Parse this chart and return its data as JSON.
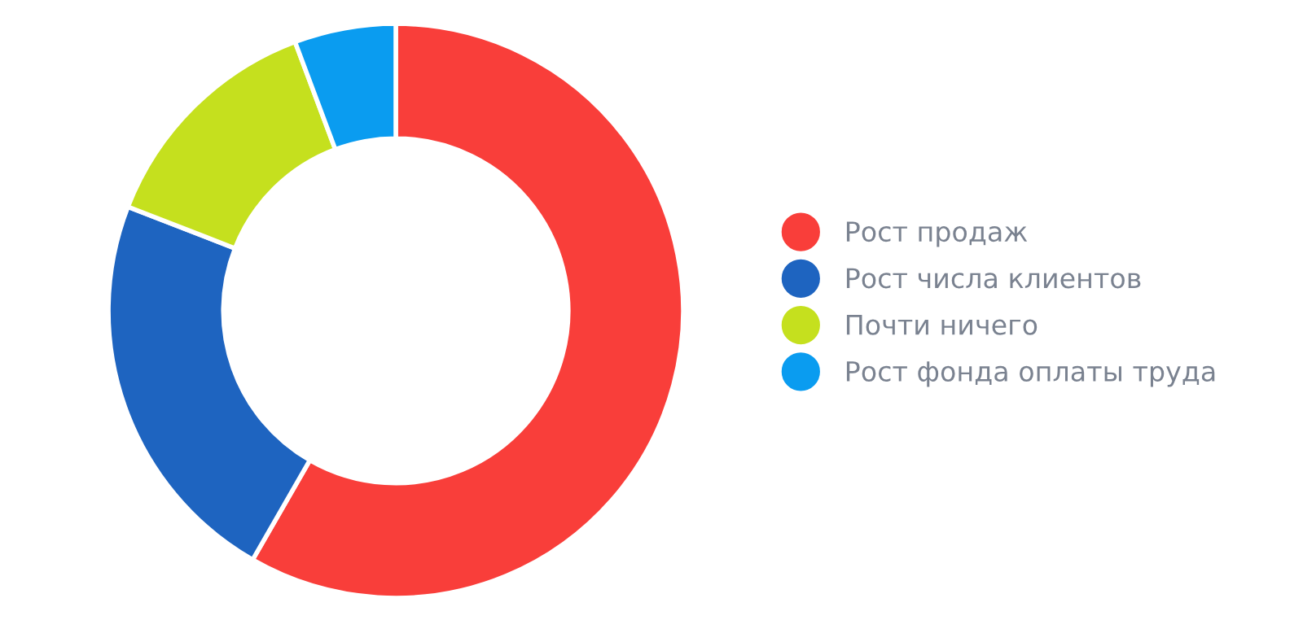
{
  "chart_data": {
    "type": "donut",
    "categories": [
      "Рост продаж",
      "Рост числа клиентов",
      "Почти ничего",
      "Рост фонда оплаты труда"
    ],
    "values": [
      58.3,
      22.6,
      13.4,
      5.7
    ],
    "colors": [
      "#f93e3a",
      "#1e64c0",
      "#c5e01e",
      "#0a9cf0"
    ],
    "legend": "right"
  }
}
